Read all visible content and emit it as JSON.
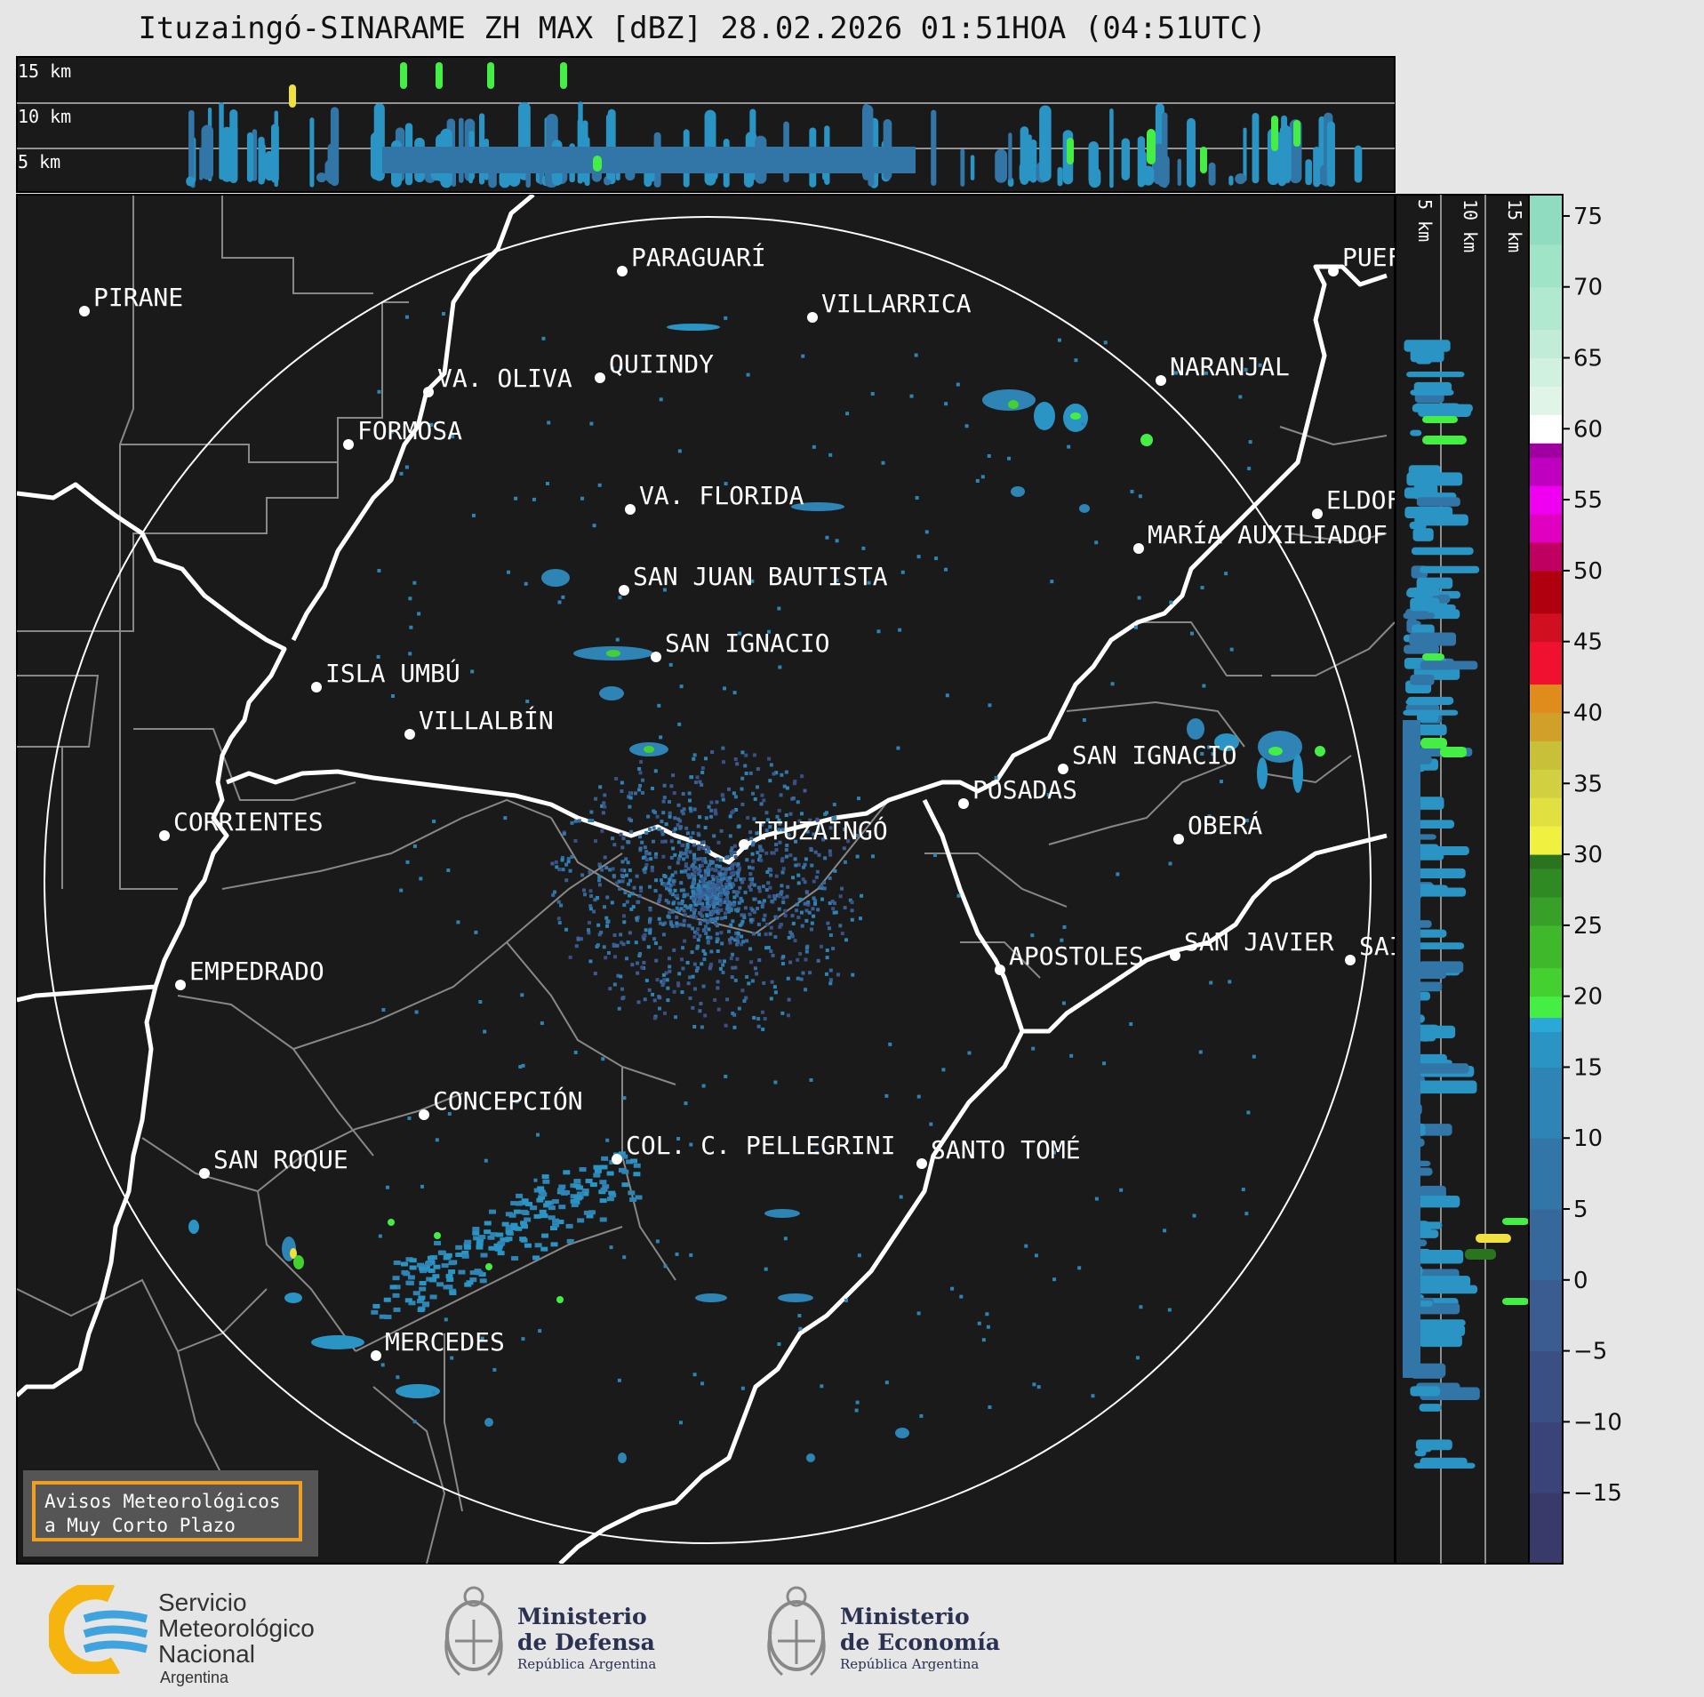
{
  "title": "Ituzaingó-SINARAME ZH MAX [dBZ] 28.02.2026 01:51HOA (04:51UTC)",
  "top_panel": {
    "labels": [
      "15 km",
      "10 km",
      "5 km"
    ]
  },
  "side_panel": {
    "labels": [
      "5 km",
      "10 km",
      "15 km"
    ]
  },
  "colorbar": {
    "ticks": [
      "75",
      "70",
      "65",
      "60",
      "55",
      "50",
      "45",
      "40",
      "35",
      "30",
      "25",
      "20",
      "15",
      "10",
      "5",
      "0",
      "−5",
      "−10",
      "−15"
    ],
    "min": -20,
    "max": 76.5
  },
  "cities": [
    {
      "name": "PIRANE"
    },
    {
      "name": "PARAGUARÍ"
    },
    {
      "name": "VILLARRICA"
    },
    {
      "name": "QUIINDY"
    },
    {
      "name": "VA. OLIVA"
    },
    {
      "name": "FORMOSA"
    },
    {
      "name": "NARANJAL"
    },
    {
      "name": "PUEF"
    },
    {
      "name": "ELDOF"
    },
    {
      "name": "MARÍA AUXILIADOF"
    },
    {
      "name": "VA. FLORIDA"
    },
    {
      "name": "SAN JUAN BAUTISTA"
    },
    {
      "name": "SAN IGNACIO"
    },
    {
      "name": "ISLA UMBÚ"
    },
    {
      "name": "VILLALBÍN"
    },
    {
      "name": "SAN IGNACIO"
    },
    {
      "name": "POSADAS"
    },
    {
      "name": "CORRIENTES"
    },
    {
      "name": "ITUZAINGÓ"
    },
    {
      "name": "OBERÁ"
    },
    {
      "name": "EMPEDRADO"
    },
    {
      "name": "APOSTOLES"
    },
    {
      "name": "SAN JAVIER"
    },
    {
      "name": "SAI"
    },
    {
      "name": "CONCEPCIÓN"
    },
    {
      "name": "COL. C. PELLEGRINI"
    },
    {
      "name": "SANTO TOMÉ"
    },
    {
      "name": "SAN ROQUE"
    },
    {
      "name": "MERCEDES"
    }
  ],
  "warning": {
    "line1": "Avisos Meteorológicos",
    "line2": "a Muy Corto Plazo"
  },
  "logos": {
    "smn": {
      "line1": "Servicio",
      "line2": "Meteorológico",
      "line3": "Nacional",
      "line4": "Argentina"
    },
    "defensa": {
      "line1": "Ministerio",
      "line2": "de Defensa",
      "line3": "República Argentina"
    },
    "economia": {
      "line1": "Ministerio",
      "line2": "de Economía",
      "line3": "República Argentina"
    }
  },
  "colors": {
    "background": "#1a1a1a",
    "river": "#ffffff",
    "border": "#888888",
    "accent": "#f0a020"
  }
}
